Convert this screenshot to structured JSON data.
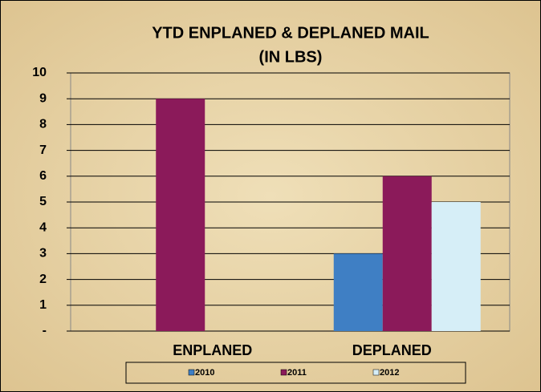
{
  "chart_data": {
    "type": "bar",
    "title": "YTD ENPLANED & DEPLANED MAIL",
    "subtitle": "(IN LBS)",
    "categories": [
      "ENPLANED",
      "DEPLANED"
    ],
    "series": [
      {
        "name": "2010",
        "color": "#3f7fc4",
        "values": [
          0,
          3
        ]
      },
      {
        "name": "2011",
        "color": "#8b1a5a",
        "values": [
          9,
          6
        ]
      },
      {
        "name": "2012",
        "color": "#d6eef7",
        "values": [
          0,
          5
        ]
      }
    ],
    "ylim": [
      0,
      10
    ],
    "yticks": [
      {
        "value": 0,
        "label": "-"
      },
      1,
      2,
      3,
      4,
      5,
      6,
      7,
      8,
      9,
      10
    ],
    "grid": true,
    "legend": "bottom"
  }
}
